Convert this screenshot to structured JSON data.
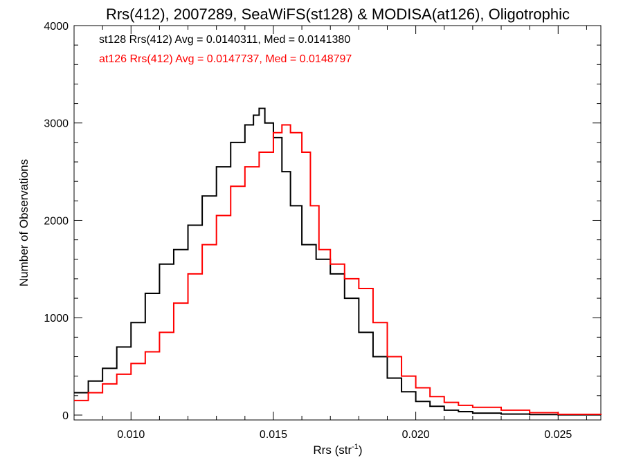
{
  "chart_data": {
    "type": "line",
    "title": "Rrs(412), 2007289, SeaWiFS(st128) & MODISA(at126), Oligotrophic",
    "xlabel": "Rrs (str",
    "xlabel_sup": "-1",
    "xlabel_close": ")",
    "ylabel": "Number of Observations",
    "xlim": [
      0.008,
      0.0265
    ],
    "ylim": [
      -50,
      4000
    ],
    "xticks": [
      0.01,
      0.015,
      0.02,
      0.025
    ],
    "xtick_labels": [
      "0.010",
      "0.015",
      "0.020",
      "0.025"
    ],
    "yticks": [
      0,
      1000,
      2000,
      3000,
      4000
    ],
    "ytick_labels": [
      "0",
      "1000",
      "2000",
      "3000",
      "4000"
    ],
    "grid": false,
    "legend": "top-left",
    "series": [
      {
        "name": "st128 Rrs(412) Avg = 0.0140311, Med = 0.0141380",
        "color": "#000000",
        "x": [
          0.008,
          0.0085,
          0.009,
          0.0095,
          0.01,
          0.0105,
          0.011,
          0.0115,
          0.012,
          0.0125,
          0.013,
          0.0135,
          0.014,
          0.0143,
          0.0145,
          0.0147,
          0.015,
          0.0153,
          0.0156,
          0.016,
          0.0165,
          0.017,
          0.0175,
          0.018,
          0.0185,
          0.019,
          0.0195,
          0.02,
          0.0205,
          0.021,
          0.0215,
          0.022,
          0.023,
          0.024,
          0.025,
          0.0265
        ],
        "y": [
          230,
          350,
          480,
          700,
          950,
          1250,
          1550,
          1700,
          1950,
          2250,
          2550,
          2800,
          2980,
          3080,
          3150,
          3000,
          2850,
          2500,
          2150,
          1750,
          1600,
          1450,
          1200,
          850,
          600,
          380,
          240,
          140,
          90,
          50,
          35,
          20,
          10,
          5,
          2,
          0
        ]
      },
      {
        "name": "at126 Rrs(412) Avg = 0.0147737, Med = 0.0148797",
        "color": "#ff0000",
        "x": [
          0.008,
          0.0085,
          0.009,
          0.0095,
          0.01,
          0.0105,
          0.011,
          0.0115,
          0.012,
          0.0125,
          0.013,
          0.0135,
          0.014,
          0.0145,
          0.015,
          0.0153,
          0.0156,
          0.016,
          0.0163,
          0.0166,
          0.017,
          0.0175,
          0.018,
          0.0185,
          0.019,
          0.0195,
          0.02,
          0.0205,
          0.021,
          0.0215,
          0.022,
          0.023,
          0.024,
          0.025,
          0.0265
        ],
        "y": [
          150,
          230,
          320,
          420,
          530,
          650,
          850,
          1150,
          1450,
          1750,
          2050,
          2350,
          2550,
          2700,
          2900,
          2980,
          2900,
          2700,
          2150,
          1700,
          1550,
          1400,
          1300,
          950,
          600,
          400,
          280,
          190,
          130,
          100,
          80,
          50,
          25,
          8,
          2
        ]
      }
    ]
  }
}
